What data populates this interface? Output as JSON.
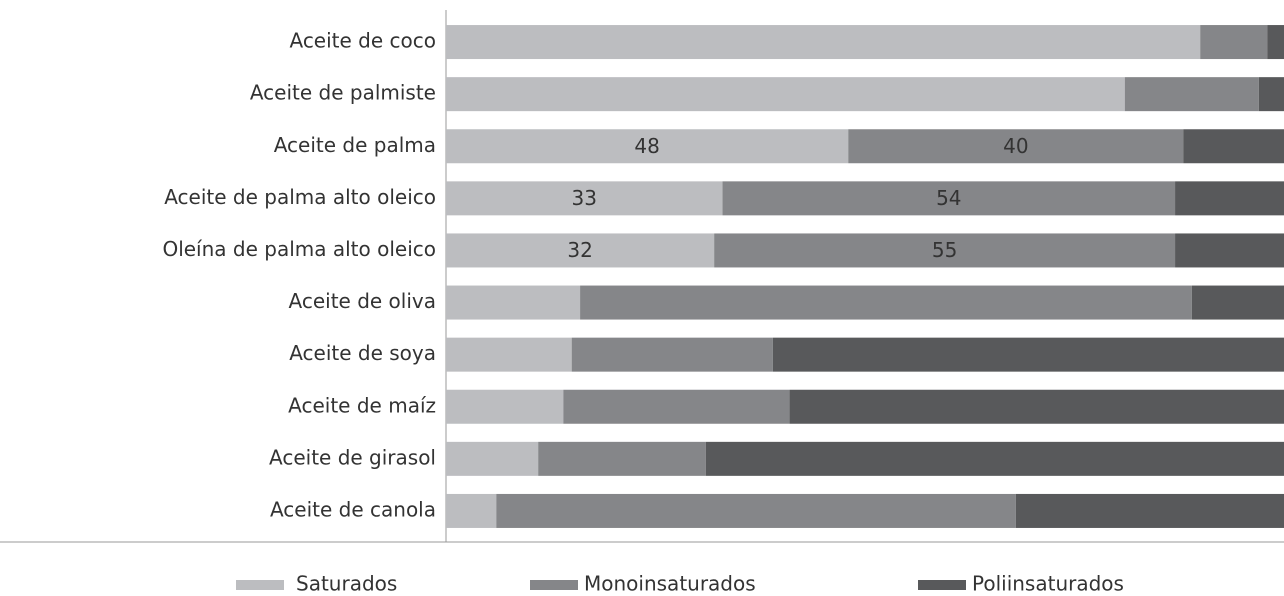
{
  "chart_data": {
    "type": "stacked-barh",
    "categories": [
      "Aceite de coco",
      "Aceite de palmiste",
      "Aceite de palma",
      "Aceite de palma alto oleico",
      "Oleína de palma alto oleico",
      "Aceite de oliva",
      "Aceite de soya",
      "Aceite de maíz",
      "Aceite de girasol",
      "Aceite de canola"
    ],
    "xlim": [
      0,
      100
    ],
    "legend": "bottom",
    "series": [
      {
        "name": "Saturados",
        "color": "#bcbdc0",
        "values": [
          90,
          81,
          48,
          33,
          32,
          16,
          15,
          14,
          11,
          6
        ],
        "value_labels": [
          null,
          null,
          "48",
          "33",
          "32",
          null,
          null,
          null,
          null,
          null
        ]
      },
      {
        "name": "Monoinsaturados",
        "color": "#858689",
        "values": [
          8,
          16,
          40,
          54,
          55,
          73,
          24,
          27,
          20,
          62
        ],
        "value_labels": [
          null,
          null,
          "40",
          "54",
          "55",
          null,
          null,
          null,
          null,
          null
        ]
      },
      {
        "name": "Poliinsaturados",
        "color": "#58595b",
        "values": [
          2,
          3,
          12,
          13,
          13,
          11,
          61,
          59,
          69,
          32
        ]
      }
    ]
  }
}
